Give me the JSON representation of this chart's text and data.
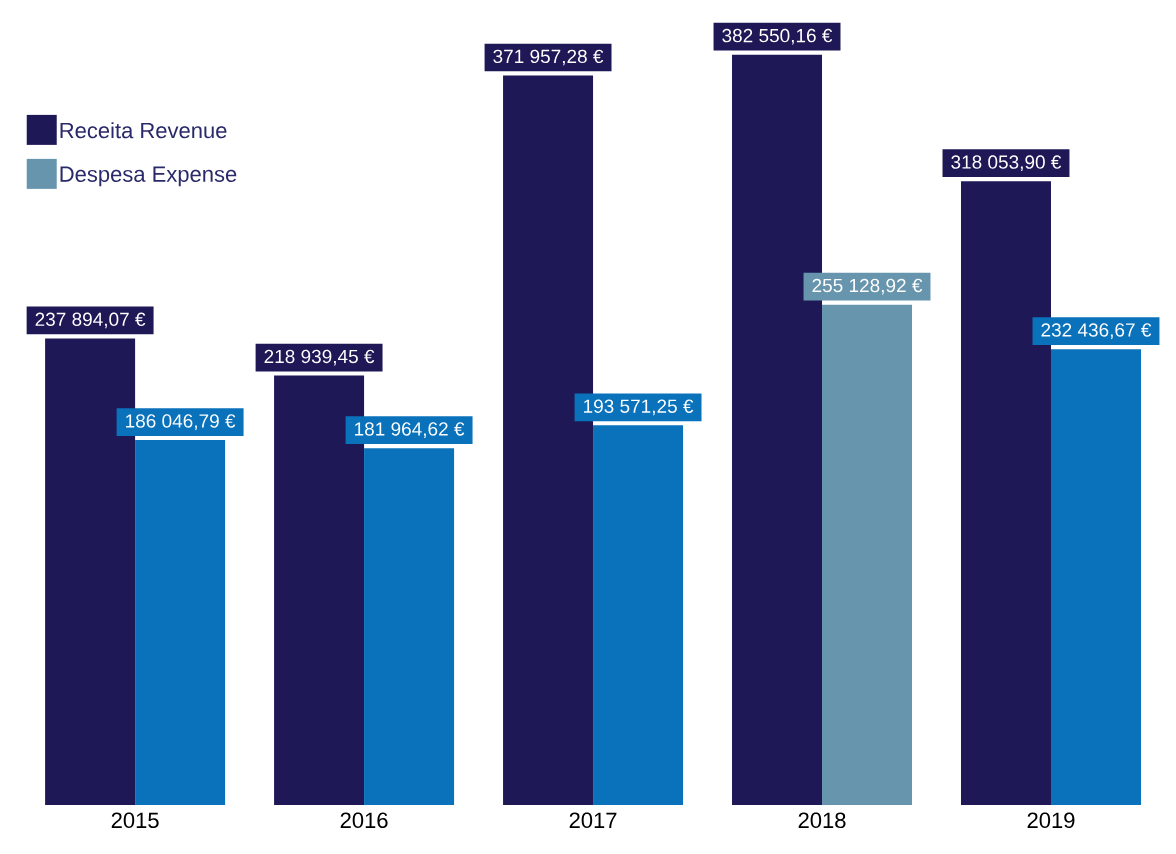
{
  "chart_data": {
    "type": "bar",
    "categories": [
      "2015",
      "2016",
      "2017",
      "2018",
      "2019"
    ],
    "series": [
      {
        "name": "Receita Revenue",
        "color": "#1e1856",
        "values": [
          237894.07,
          218939.45,
          371957.28,
          382550.16,
          318053.9
        ],
        "value_labels": [
          "237 894,07 €",
          "218 939,45 €",
          "371 957,28 €",
          "382 550,16 €",
          "318 053,90 €"
        ]
      },
      {
        "name": "Despesa Expense",
        "color": "#6895ae",
        "colors": [
          "#0a72bb",
          "#0a72bb",
          "#0a72bb",
          "#6895ae",
          "#0a72bb"
        ],
        "values": [
          186046.79,
          181964.62,
          193571.25,
          255128.92,
          232436.67
        ],
        "value_labels": [
          "186 046,79 €",
          "181 964,62 €",
          "193 571,25 €",
          "255 128,92 €",
          "232 436,67 €"
        ]
      }
    ],
    "legend": "top left"
  }
}
